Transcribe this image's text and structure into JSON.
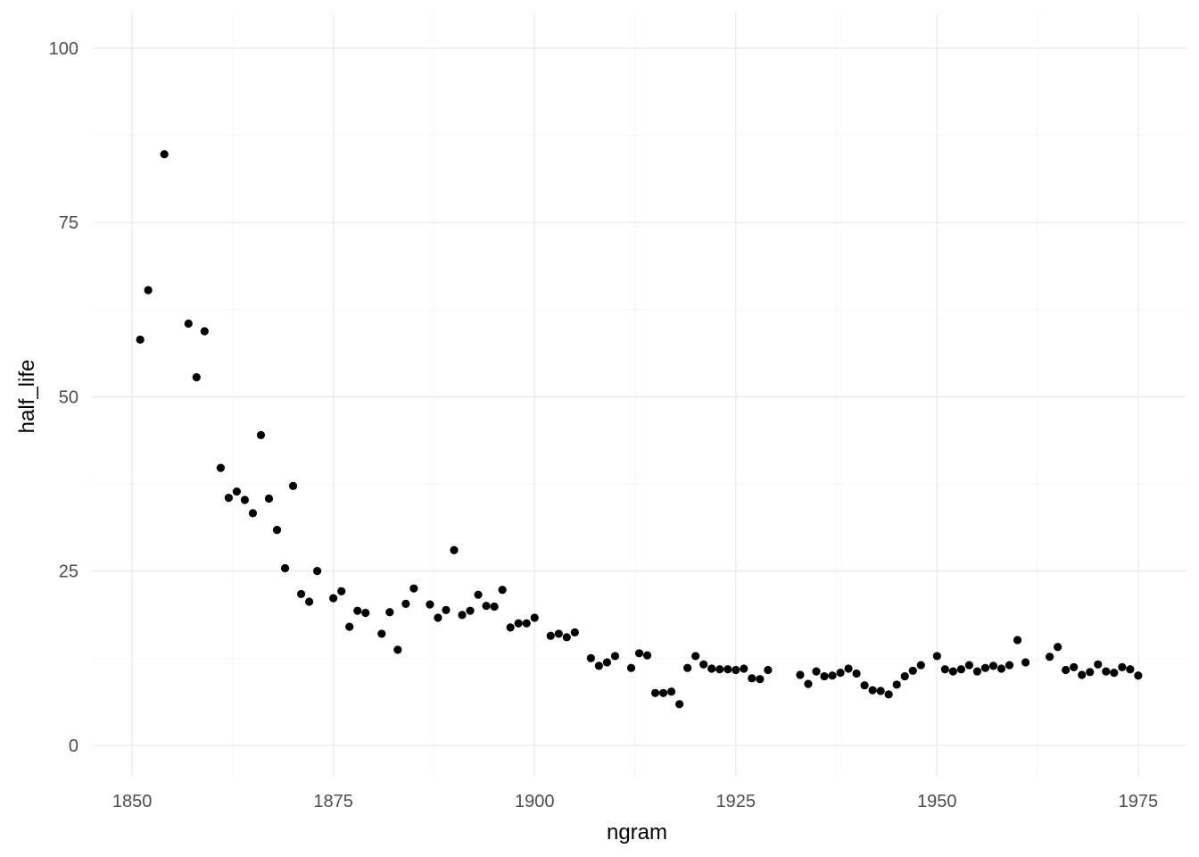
{
  "chart_data": {
    "type": "scatter",
    "xlabel": "ngram",
    "ylabel": "half_life",
    "xlim": [
      1845,
      1981
    ],
    "ylim": [
      -4.5,
      105
    ],
    "x_ticks": [
      1850,
      1875,
      1900,
      1925,
      1950,
      1975
    ],
    "x_tick_labels": [
      "1850",
      "1875",
      "1900",
      "1925",
      "1950",
      "1975"
    ],
    "y_ticks": [
      0,
      25,
      50,
      75,
      100
    ],
    "y_tick_labels": [
      "0",
      "25",
      "50",
      "75",
      "100"
    ],
    "grid": true,
    "point_color": "#000000",
    "points": [
      [
        1851,
        58.2
      ],
      [
        1852,
        65.3
      ],
      [
        1854,
        84.8
      ],
      [
        1857,
        60.5
      ],
      [
        1858,
        52.8
      ],
      [
        1859,
        59.4
      ],
      [
        1861,
        39.8
      ],
      [
        1862,
        35.5
      ],
      [
        1863,
        36.4
      ],
      [
        1864,
        35.2
      ],
      [
        1865,
        33.3
      ],
      [
        1866,
        44.5
      ],
      [
        1867,
        35.4
      ],
      [
        1868,
        30.9
      ],
      [
        1869,
        25.4
      ],
      [
        1870,
        37.2
      ],
      [
        1871,
        21.7
      ],
      [
        1872,
        20.6
      ],
      [
        1873,
        25.0
      ],
      [
        1875,
        21.1
      ],
      [
        1876,
        22.1
      ],
      [
        1877,
        17.0
      ],
      [
        1878,
        19.3
      ],
      [
        1879,
        19.0
      ],
      [
        1881,
        16.0
      ],
      [
        1882,
        19.1
      ],
      [
        1883,
        13.7
      ],
      [
        1884,
        20.3
      ],
      [
        1885,
        22.5
      ],
      [
        1887,
        20.2
      ],
      [
        1888,
        18.3
      ],
      [
        1889,
        19.4
      ],
      [
        1890,
        28.0
      ],
      [
        1891,
        18.7
      ],
      [
        1892,
        19.3
      ],
      [
        1893,
        21.6
      ],
      [
        1894,
        20.0
      ],
      [
        1895,
        19.9
      ],
      [
        1896,
        22.3
      ],
      [
        1897,
        16.9
      ],
      [
        1898,
        17.5
      ],
      [
        1899,
        17.5
      ],
      [
        1900,
        18.3
      ],
      [
        1902,
        15.7
      ],
      [
        1903,
        16.0
      ],
      [
        1904,
        15.5
      ],
      [
        1905,
        16.2
      ],
      [
        1907,
        12.5
      ],
      [
        1908,
        11.4
      ],
      [
        1909,
        11.9
      ],
      [
        1910,
        12.8
      ],
      [
        1912,
        11.1
      ],
      [
        1913,
        13.2
      ],
      [
        1914,
        12.9
      ],
      [
        1915,
        7.5
      ],
      [
        1916,
        7.5
      ],
      [
        1917,
        7.7
      ],
      [
        1918,
        5.9
      ],
      [
        1919,
        11.1
      ],
      [
        1920,
        12.8
      ],
      [
        1921,
        11.6
      ],
      [
        1922,
        11.0
      ],
      [
        1923,
        10.9
      ],
      [
        1924,
        10.9
      ],
      [
        1925,
        10.8
      ],
      [
        1926,
        11.0
      ],
      [
        1927,
        9.6
      ],
      [
        1928,
        9.5
      ],
      [
        1929,
        10.8
      ],
      [
        1933,
        10.1
      ],
      [
        1934,
        8.8
      ],
      [
        1935,
        10.6
      ],
      [
        1936,
        9.9
      ],
      [
        1937,
        10.0
      ],
      [
        1938,
        10.4
      ],
      [
        1939,
        11.0
      ],
      [
        1940,
        10.3
      ],
      [
        1941,
        8.6
      ],
      [
        1942,
        7.9
      ],
      [
        1943,
        7.8
      ],
      [
        1944,
        7.3
      ],
      [
        1945,
        8.7
      ],
      [
        1946,
        9.9
      ],
      [
        1947,
        10.7
      ],
      [
        1948,
        11.5
      ],
      [
        1950,
        12.8
      ],
      [
        1951,
        10.9
      ],
      [
        1952,
        10.6
      ],
      [
        1953,
        10.9
      ],
      [
        1954,
        11.5
      ],
      [
        1955,
        10.6
      ],
      [
        1956,
        11.1
      ],
      [
        1957,
        11.4
      ],
      [
        1958,
        11.0
      ],
      [
        1959,
        11.5
      ],
      [
        1960,
        15.1
      ],
      [
        1961,
        11.9
      ],
      [
        1964,
        12.7
      ],
      [
        1965,
        14.1
      ],
      [
        1966,
        10.8
      ],
      [
        1967,
        11.2
      ],
      [
        1968,
        10.1
      ],
      [
        1969,
        10.5
      ],
      [
        1970,
        11.6
      ],
      [
        1971,
        10.6
      ],
      [
        1972,
        10.4
      ],
      [
        1973,
        11.2
      ],
      [
        1974,
        10.9
      ],
      [
        1975,
        10.0
      ]
    ]
  }
}
